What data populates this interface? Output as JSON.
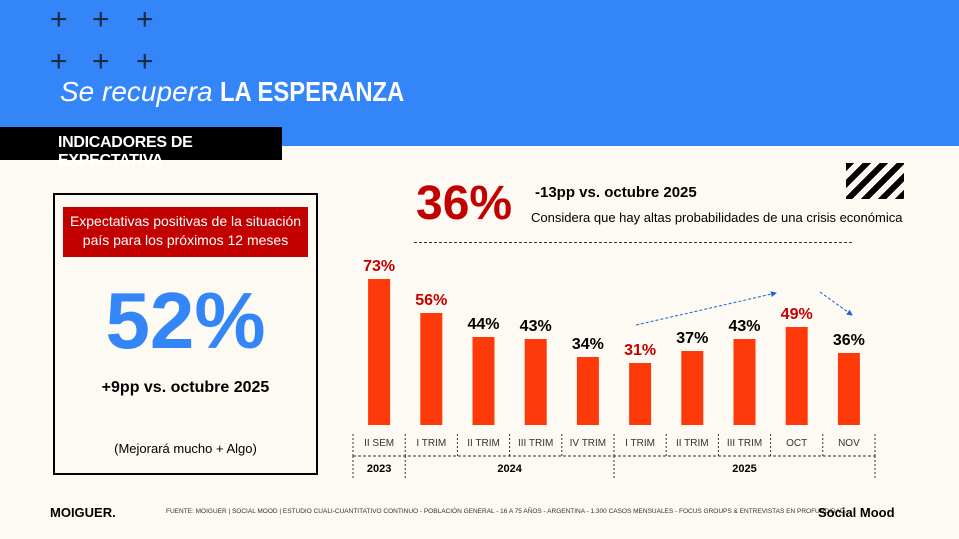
{
  "header": {
    "title_italic": "Se recupera",
    "title_bold": "LA ESPERANZA",
    "section": "INDICADORES DE EXPECTATIVA"
  },
  "left_panel": {
    "label": "Expectativas positivas de la situación país para los próximos 12 meses",
    "value": "52%",
    "change": "+9pp vs. octubre 2025",
    "note": "(Mejorará mucho + Algo)"
  },
  "crisis": {
    "value": "36%",
    "change": "-13pp vs. octubre 2025",
    "description": "Considera que hay altas probabilidades de una crisis económica"
  },
  "colors": {
    "bar": "#ff3a0a",
    "highlight_label": "#c30000",
    "blue": "#3385f8"
  },
  "chart_data": {
    "type": "bar",
    "categories": [
      "II SEM",
      "I TRIM",
      "II TRIM",
      "III TRIM",
      "IV TRIM",
      "I TRIM",
      "II TRIM",
      "III TRIM",
      "OCT",
      "NOV"
    ],
    "values": [
      73,
      56,
      44,
      43,
      34,
      31,
      37,
      43,
      49,
      36
    ],
    "labels": [
      "73%",
      "56%",
      "44%",
      "43%",
      "34%",
      "31%",
      "37%",
      "43%",
      "49%",
      "36%"
    ],
    "highlighted": [
      true,
      true,
      false,
      false,
      false,
      true,
      false,
      false,
      true,
      false
    ],
    "years": [
      {
        "label": "2023",
        "span": 1
      },
      {
        "label": "2024",
        "span": 4
      },
      {
        "label": "2025",
        "span": 5
      }
    ],
    "ylim": [
      0,
      80
    ]
  },
  "footer": {
    "brand": "MOIGUER.",
    "source": "FUENTE: MOIGUER | SOCIAL MOOD | ESTUDIO CUALI-CUANTITATIVO CONTINUO - POBLACIÓN GENERAL - 16 A 75 AÑOS - ARGENTINA - 1.300 CASOS MENSUALES - FOCUS GROUPS & ENTREVISTAS EN PROFUNDIDAD.",
    "product": "Social Mood"
  }
}
